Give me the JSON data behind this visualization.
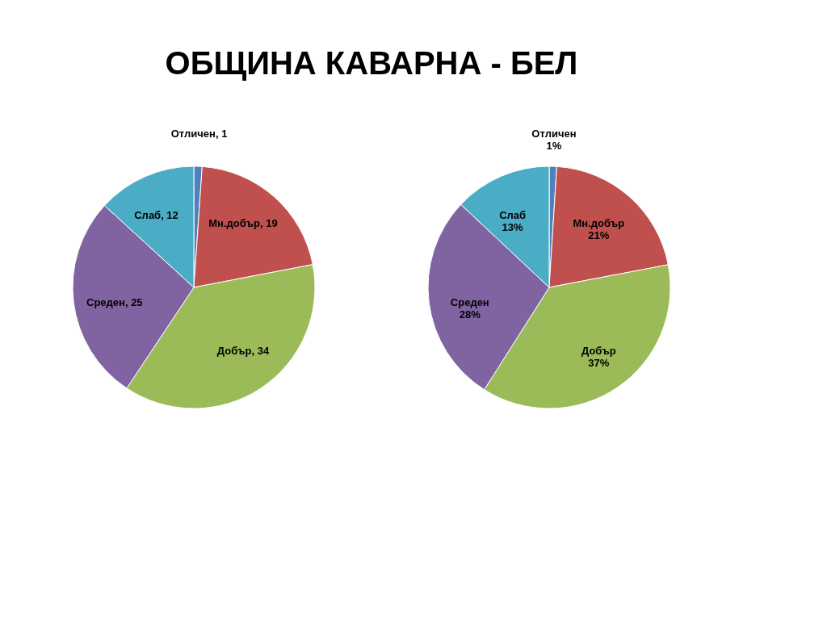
{
  "chart_data": [
    {
      "type": "pie",
      "title": "ОБЩИНА КАВАРНА - БЕЛ",
      "categories": [
        "Отличен",
        "Мн.добър",
        "Добър",
        "Среден",
        "Слаб"
      ],
      "values": [
        1,
        19,
        34,
        25,
        12
      ],
      "colors": [
        "#4f81bd",
        "#c0504d",
        "#9bbb59",
        "#8064a2",
        "#4bacc6"
      ],
      "value_labels": [
        "1",
        "19",
        "34",
        "25",
        "12"
      ],
      "legend": false
    },
    {
      "type": "pie",
      "categories": [
        "Отличен",
        "Мн.добър",
        "Добър",
        "Среден",
        "Слаб"
      ],
      "values": [
        1,
        21,
        37,
        28,
        13
      ],
      "colors": [
        "#4f81bd",
        "#c0504d",
        "#9bbb59",
        "#8064a2",
        "#4bacc6"
      ],
      "value_labels": [
        "1%",
        "21%",
        "37%",
        "28%",
        "13%"
      ],
      "legend": false
    }
  ]
}
